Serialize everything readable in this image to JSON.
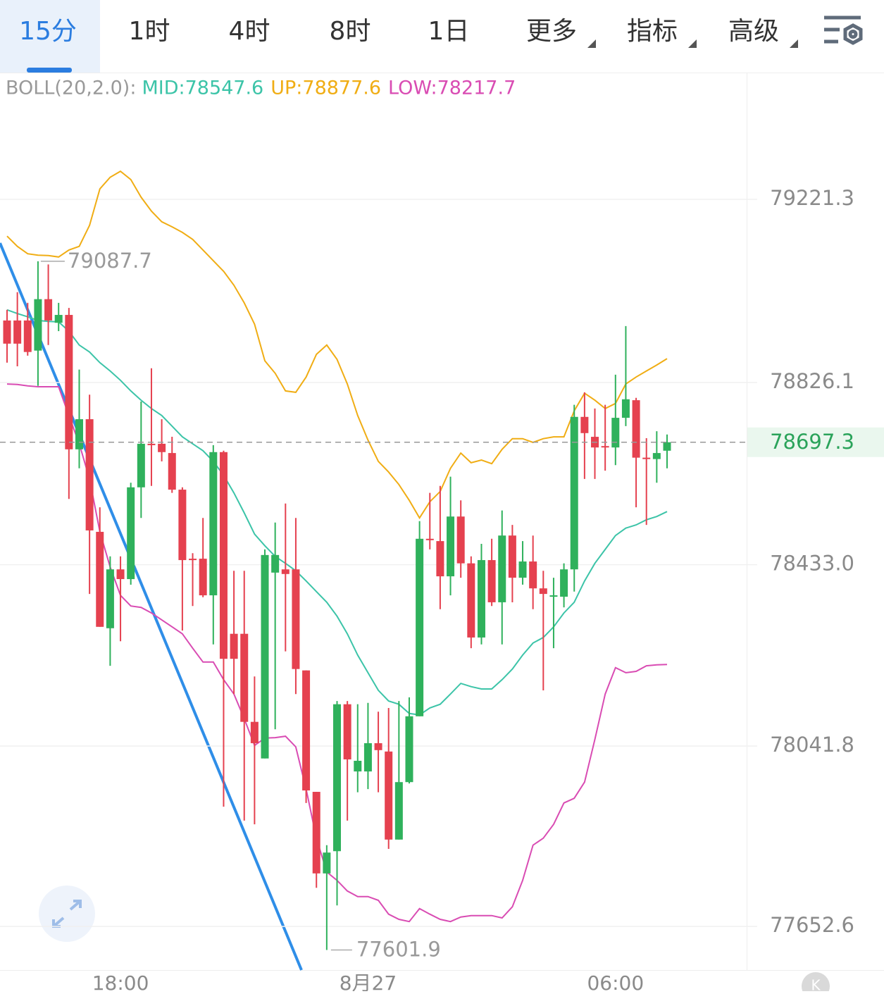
{
  "tabs": {
    "items": [
      "15分",
      "1时",
      "4时",
      "8时",
      "1日",
      "更多",
      "指标",
      "高级"
    ],
    "active": 0
  },
  "chart_data": {
    "type": "candlestick",
    "indicator_label": "BOLL(20,2.0):",
    "categories": [
      null,
      null,
      null,
      null,
      null,
      null,
      null,
      null,
      null,
      null,
      null,
      "18:00",
      null,
      null,
      null,
      null,
      null,
      null,
      null,
      null,
      null,
      null,
      null,
      null,
      null,
      null,
      null,
      null,
      null,
      null,
      null,
      null,
      null,
      null,
      null,
      "8月27",
      null,
      null,
      null,
      null,
      null,
      null,
      null,
      null,
      null,
      null,
      null,
      null,
      null,
      null,
      null,
      null,
      null,
      null,
      null,
      null,
      null,
      null,
      null,
      "06:00",
      null,
      null,
      null,
      null,
      null
    ],
    "open": [
      78960,
      78960,
      78960,
      78895,
      79006,
      78955,
      78972,
      78682,
      78747,
      78504,
      78296,
      78423,
      78402,
      78600,
      78694,
      78694,
      78674,
      78595,
      78446,
      78446,
      78367,
      78676,
      78284,
      78284,
      78094,
      78015,
      78416,
      78423,
      78423,
      78205,
      77943,
      77767,
      77815,
      78132,
      77987,
      77987,
      78048,
      78030,
      77840,
      77964,
      78106,
      78489,
      78484,
      78408,
      78537,
      78436,
      78276,
      78443,
      78352,
      78496,
      78405,
      78440,
      78382,
      78364,
      78364,
      78423,
      78752,
      78709,
      78689,
      78686,
      78750,
      78788,
      78664,
      78661,
      78679
    ],
    "high": [
      78983,
      79021,
      78998,
      79087.7,
      79081,
      78998,
      78987,
      78854,
      78800,
      78557,
      78451,
      78451,
      78610,
      78785,
      78857,
      78747,
      78709,
      78600,
      78458,
      78534,
      78691,
      78679,
      78420,
      78420,
      78192,
      78466,
      78524,
      78565,
      78534,
      78205,
      77943,
      77828,
      78139,
      78139,
      78132,
      78135,
      78116,
      78124,
      78139,
      78147,
      78527,
      78588,
      78603,
      78623,
      78572,
      78451,
      78478,
      78489,
      78550,
      78519,
      78484,
      78496,
      78420,
      78405,
      78436,
      78778,
      78805,
      78770,
      78778,
      78843,
      78948,
      78793,
      78706,
      78721,
      78714
    ],
    "low": [
      78869,
      78861,
      78884,
      78819,
      78907,
      78937,
      78575,
      78641,
      78370,
      78299,
      78215,
      78268,
      78390,
      78534,
      78603,
      78656,
      78588,
      78291,
      78344,
      78363,
      78261,
      77911,
      78154,
      77881,
      77873,
      78015,
      78078,
      78246,
      78154,
      77919,
      77736,
      77601.9,
      77698,
      77881,
      77942,
      77949,
      77942,
      77820,
      77840,
      77961,
      78106,
      78466,
      78337,
      78367,
      78405,
      78253,
      78261,
      78344,
      78261,
      78352,
      78390,
      78337,
      78162,
      78253,
      78341,
      78375,
      78618,
      78618,
      78636,
      78648,
      78732,
      78557,
      78519,
      78610,
      78641
    ],
    "close": [
      78910,
      78910,
      78892,
      79006,
      78960,
      78972,
      78682,
      78747,
      78507,
      78299,
      78423,
      78402,
      78600,
      78694,
      78691,
      78676,
      78595,
      78443,
      78443,
      78367,
      78676,
      78230,
      78230,
      78094,
      78048,
      78454,
      78454,
      78413,
      78208,
      77946,
      77767,
      77812,
      78132,
      78013,
      78010,
      78048,
      78033,
      77840,
      77964,
      78106,
      78489,
      78486,
      78408,
      78537,
      78436,
      78276,
      78443,
      78352,
      78496,
      78405,
      78440,
      78382,
      78370,
      78367,
      78423,
      78752,
      78717,
      78686,
      78686,
      78750,
      78790,
      78664,
      78661,
      78674,
      78697.3
    ],
    "up_color": "#2fb15c",
    "down_color": "#e5414f",
    "series": [
      {
        "name": "MID:78547.6",
        "color": "#3cc4a8",
        "values": [
          78983,
          78975,
          78968,
          78960,
          78958,
          78957,
          78937,
          78907,
          78892,
          78869,
          78851,
          78831,
          78808,
          78788,
          78770,
          78755,
          78732,
          78709,
          78694,
          78679,
          78656,
          78626,
          78588,
          78545,
          78499,
          78474,
          78451,
          78436,
          78420,
          78398,
          78375,
          78352,
          78322,
          78284,
          78238,
          78200,
          78162,
          78139,
          78132,
          78112,
          78109,
          78124,
          78132,
          78154,
          78177,
          78170,
          78165,
          78165,
          78185,
          78208,
          78238,
          78264,
          78276,
          78299,
          78329,
          78352,
          78398,
          78436,
          78466,
          78496,
          78512,
          78519,
          78530,
          78537,
          78547.6
        ]
      },
      {
        "name": "UP:78877.6",
        "color": "#f0ad14",
        "values": [
          79142,
          79120,
          79104,
          79101,
          79100,
          79097,
          79112,
          79120,
          79165,
          79244,
          79269,
          79282,
          79264,
          79226,
          79196,
          79173,
          79162,
          79150,
          79135,
          79112,
          79089,
          79066,
          79036,
          78998,
          78952,
          78873,
          78846,
          78808,
          78805,
          78838,
          78887,
          78907,
          78876,
          78823,
          78755,
          78702,
          78656,
          78633,
          78606,
          78572,
          78534,
          78569,
          78591,
          78641,
          78674,
          78653,
          78659,
          78651,
          78682,
          78705,
          78705,
          78697,
          78705,
          78709,
          78709,
          78765,
          78803,
          78788,
          78770,
          78781,
          78823,
          78838,
          78851,
          78864,
          78877.6
        ]
      },
      {
        "name": "LOW:78217.7",
        "color": "#d94cb3",
        "values": [
          78823,
          78822,
          78819,
          78817,
          78817,
          78817,
          78755,
          78694,
          78618,
          78504,
          78428,
          78367,
          78344,
          78341,
          78329,
          78314,
          78299,
          78284,
          78253,
          78223,
          78223,
          78185,
          78154,
          78101,
          78043,
          78059,
          78060,
          78063,
          78040,
          77949,
          77843,
          77770,
          77752,
          77729,
          77717,
          77717,
          77709,
          77679,
          77668,
          77663,
          77691,
          77679,
          77668,
          77663,
          77673,
          77676,
          77676,
          77676,
          77671,
          77695,
          77752,
          77828,
          77843,
          77873,
          77919,
          77929,
          77964,
          78056,
          78154,
          78211,
          78200,
          78203,
          78215,
          78217,
          78217.7
        ]
      }
    ],
    "ylim": [
      77558.5,
      79494.9
    ],
    "yticks": [
      79221.3,
      78826.1,
      {
        "value": 78433.0,
        "label": "78433.0"
      },
      78041.8,
      77652.6
    ],
    "grid": true,
    "max_label": 79087.7,
    "min_label": 77601.9,
    "current_price": 78697.3
  },
  "corner_icon": "K"
}
